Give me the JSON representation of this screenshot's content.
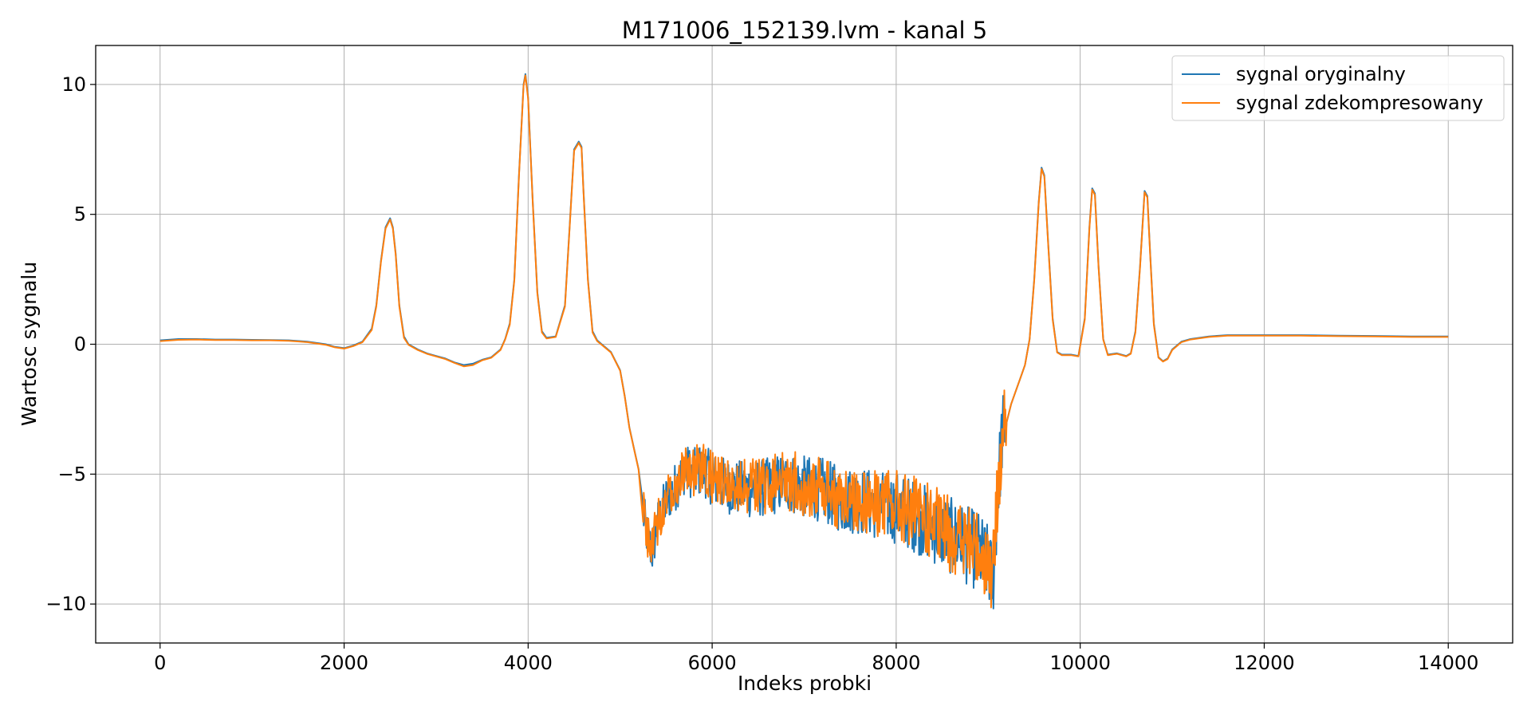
{
  "chart_data": {
    "type": "line",
    "title": "M171006_152139.lvm - kanal 5",
    "xlabel": "Indeks probki",
    "ylabel": "Wartosc sygnalu",
    "xlim": [
      -700,
      14700
    ],
    "ylim": [
      -11.5,
      11.5
    ],
    "xticks": [
      0,
      2000,
      4000,
      6000,
      8000,
      10000,
      12000,
      14000
    ],
    "xtick_labels": [
      "0",
      "2000",
      "4000",
      "6000",
      "8000",
      "10000",
      "12000",
      "14000"
    ],
    "yticks": [
      -10,
      -5,
      0,
      5,
      10
    ],
    "ytick_labels": [
      "−10",
      "−5",
      "0",
      "5",
      "10"
    ],
    "grid": true,
    "legend_position": "upper right",
    "series": [
      {
        "name": "sygnal oryginalny",
        "color": "#1f77b4",
        "x": [
          0,
          200,
          400,
          600,
          800,
          1000,
          1200,
          1400,
          1600,
          1800,
          1900,
          2000,
          2100,
          2200,
          2300,
          2350,
          2400,
          2450,
          2500,
          2530,
          2560,
          2600,
          2650,
          2700,
          2800,
          2900,
          3000,
          3100,
          3200,
          3300,
          3400,
          3500,
          3600,
          3700,
          3750,
          3800,
          3850,
          3900,
          3950,
          3970,
          4000,
          4050,
          4100,
          4150,
          4200,
          4300,
          4400,
          4450,
          4500,
          4550,
          4580,
          4600,
          4650,
          4700,
          4750,
          4800,
          4900,
          5000,
          5050,
          5100,
          5150,
          5200,
          5250,
          5300,
          5350,
          5400,
          5500,
          5600,
          5700,
          5800,
          5900,
          6000,
          6200,
          6400,
          6600,
          6800,
          7000,
          7200,
          7400,
          7600,
          7800,
          8000,
          8200,
          8400,
          8600,
          8800,
          8900,
          9000,
          9050,
          9100,
          9150,
          9200,
          9250,
          9300,
          9350,
          9400,
          9450,
          9500,
          9550,
          9580,
          9610,
          9650,
          9700,
          9750,
          9800,
          9900,
          9980,
          10050,
          10100,
          10130,
          10160,
          10200,
          10250,
          10300,
          10400,
          10500,
          10550,
          10600,
          10650,
          10700,
          10730,
          10760,
          10800,
          10850,
          10900,
          10950,
          11000,
          11100,
          11200,
          11400,
          11600,
          11800,
          12000,
          12400,
          12800,
          13200,
          13600,
          14000
        ],
        "values": [
          0.15,
          0.2,
          0.2,
          0.18,
          0.18,
          0.17,
          0.16,
          0.15,
          0.1,
          0.0,
          -0.1,
          -0.15,
          -0.05,
          0.1,
          0.6,
          1.5,
          3.2,
          4.5,
          4.85,
          4.5,
          3.5,
          1.5,
          0.3,
          0.0,
          -0.2,
          -0.35,
          -0.45,
          -0.55,
          -0.7,
          -0.8,
          -0.75,
          -0.6,
          -0.5,
          -0.2,
          0.2,
          0.8,
          2.5,
          6.5,
          10.0,
          10.4,
          9.5,
          5.5,
          2.0,
          0.5,
          0.25,
          0.3,
          1.5,
          4.5,
          7.5,
          7.8,
          7.6,
          6.0,
          2.5,
          0.5,
          0.15,
          0.0,
          -0.3,
          -1.0,
          -2.0,
          -3.2,
          -4.0,
          -4.8,
          -6.5,
          -7.5,
          -8.0,
          -7.0,
          -6.0,
          -5.5,
          -4.8,
          -5.0,
          -4.8,
          -5.2,
          -5.5,
          -5.6,
          -5.5,
          -5.3,
          -5.5,
          -5.6,
          -6.0,
          -6.0,
          -6.2,
          -6.3,
          -6.6,
          -7.0,
          -7.4,
          -7.8,
          -8.0,
          -8.5,
          -9.2,
          -6.0,
          -3.5,
          -3.0,
          -2.3,
          -1.8,
          -1.3,
          -0.8,
          0.2,
          2.5,
          5.5,
          6.8,
          6.5,
          4.0,
          1.0,
          -0.3,
          -0.4,
          -0.4,
          -0.45,
          1.0,
          4.5,
          6.0,
          5.8,
          3.0,
          0.2,
          -0.4,
          -0.35,
          -0.45,
          -0.35,
          0.5,
          3.0,
          5.9,
          5.7,
          3.5,
          0.8,
          -0.5,
          -0.65,
          -0.55,
          -0.2,
          0.1,
          0.2,
          0.3,
          0.35,
          0.35,
          0.35,
          0.35,
          0.33,
          0.32,
          0.3,
          0.3
        ]
      },
      {
        "name": "sygnal zdekompresowany",
        "color": "#ff7f0e",
        "x": [
          0,
          200,
          400,
          600,
          800,
          1000,
          1200,
          1400,
          1600,
          1800,
          1900,
          2000,
          2100,
          2200,
          2300,
          2350,
          2400,
          2450,
          2500,
          2530,
          2560,
          2600,
          2650,
          2700,
          2800,
          2900,
          3000,
          3100,
          3200,
          3300,
          3400,
          3500,
          3600,
          3700,
          3750,
          3800,
          3850,
          3900,
          3950,
          3970,
          4000,
          4050,
          4100,
          4150,
          4200,
          4300,
          4400,
          4450,
          4500,
          4550,
          4580,
          4600,
          4650,
          4700,
          4750,
          4800,
          4900,
          5000,
          5050,
          5100,
          5150,
          5200,
          5250,
          5300,
          5350,
          5400,
          5500,
          5600,
          5700,
          5800,
          5900,
          6000,
          6200,
          6400,
          6600,
          6800,
          7000,
          7200,
          7400,
          7600,
          7800,
          8000,
          8200,
          8400,
          8600,
          8800,
          8900,
          9000,
          9050,
          9100,
          9150,
          9200,
          9250,
          9300,
          9350,
          9400,
          9450,
          9500,
          9550,
          9580,
          9610,
          9650,
          9700,
          9750,
          9800,
          9900,
          9980,
          10050,
          10100,
          10130,
          10160,
          10200,
          10250,
          10300,
          10400,
          10500,
          10550,
          10600,
          10650,
          10700,
          10730,
          10760,
          10800,
          10850,
          10900,
          10950,
          11000,
          11100,
          11200,
          11400,
          11600,
          11800,
          12000,
          12400,
          12800,
          13200,
          13600,
          14000
        ],
        "values": [
          0.12,
          0.17,
          0.18,
          0.16,
          0.16,
          0.15,
          0.15,
          0.13,
          0.08,
          -0.02,
          -0.12,
          -0.17,
          -0.07,
          0.08,
          0.55,
          1.45,
          3.15,
          4.45,
          4.8,
          4.45,
          3.45,
          1.45,
          0.25,
          -0.02,
          -0.22,
          -0.37,
          -0.47,
          -0.57,
          -0.72,
          -0.85,
          -0.8,
          -0.62,
          -0.52,
          -0.22,
          0.18,
          0.75,
          2.45,
          6.45,
          9.95,
          10.35,
          9.45,
          5.45,
          1.95,
          0.45,
          0.22,
          0.28,
          1.45,
          4.45,
          7.45,
          7.75,
          7.55,
          5.95,
          2.45,
          0.45,
          0.12,
          -0.02,
          -0.32,
          -1.02,
          -2.02,
          -3.22,
          -4.02,
          -4.82,
          -6.4,
          -7.4,
          -7.9,
          -6.9,
          -5.9,
          -5.4,
          -4.7,
          -4.9,
          -4.7,
          -5.1,
          -5.4,
          -5.5,
          -5.4,
          -5.2,
          -5.4,
          -5.5,
          -5.9,
          -5.9,
          -6.1,
          -6.2,
          -6.5,
          -6.9,
          -7.3,
          -7.7,
          -7.9,
          -8.4,
          -9.1,
          -5.9,
          -3.5,
          -3.0,
          -2.3,
          -1.8,
          -1.3,
          -0.8,
          0.18,
          2.45,
          5.45,
          6.75,
          6.45,
          3.95,
          0.95,
          -0.32,
          -0.42,
          -0.42,
          -0.47,
          0.95,
          4.45,
          5.95,
          5.75,
          2.95,
          0.18,
          -0.42,
          -0.37,
          -0.47,
          -0.37,
          0.45,
          2.95,
          5.85,
          5.65,
          3.45,
          0.75,
          -0.52,
          -0.67,
          -0.57,
          -0.22,
          0.08,
          0.18,
          0.28,
          0.33,
          0.33,
          0.33,
          0.33,
          0.31,
          0.3,
          0.28,
          0.28
        ]
      }
    ]
  }
}
